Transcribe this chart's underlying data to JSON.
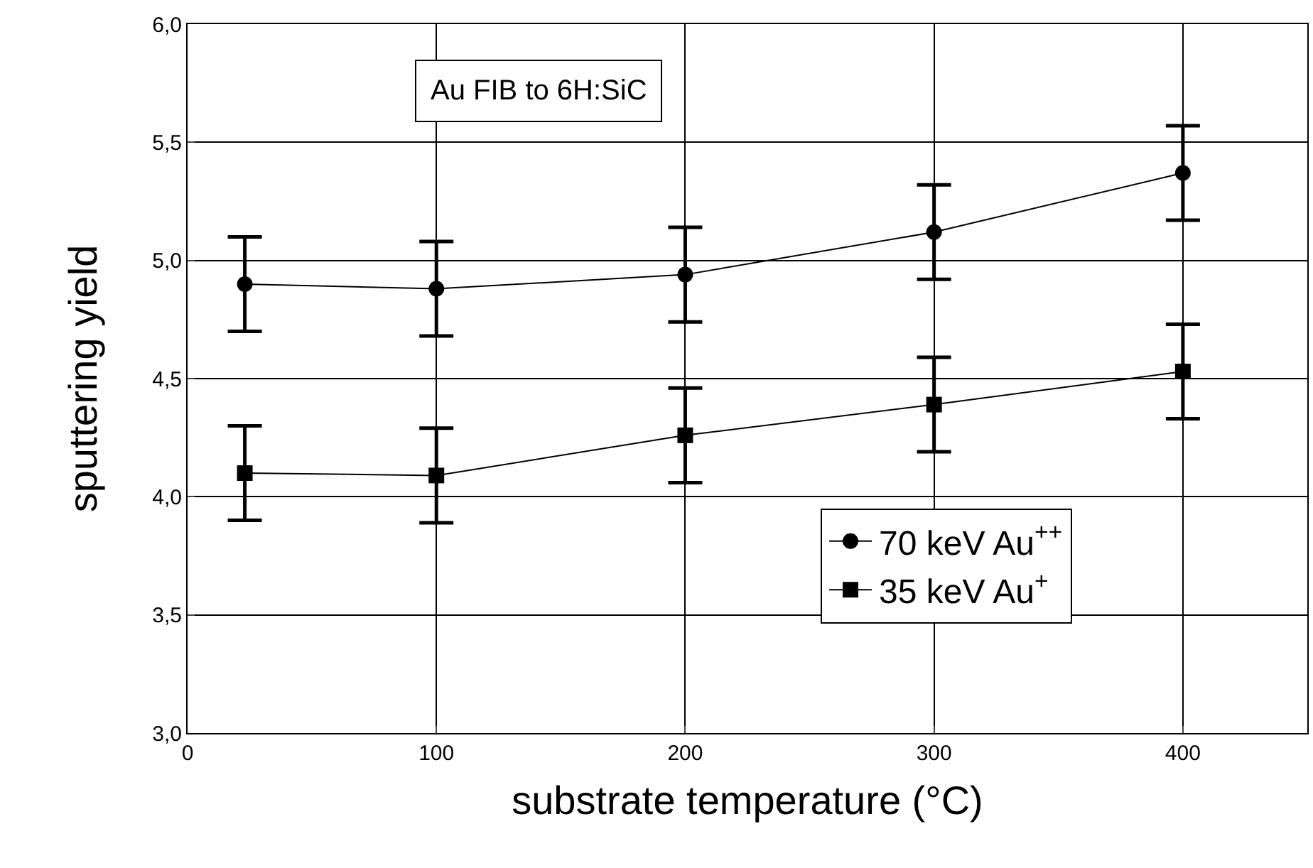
{
  "chart_data": {
    "type": "line",
    "xlabel": "substrate temperature (°C)",
    "ylabel": "sputtering yield",
    "x": [
      23,
      100,
      200,
      300,
      400
    ],
    "series": [
      {
        "name": "70 keV Au$^{++}$",
        "color": "#000000",
        "marker": "circle",
        "values": [
          4.9,
          4.88,
          4.94,
          5.12,
          5.37
        ],
        "errors": [
          0.2,
          0.2,
          0.2,
          0.2,
          0.2
        ]
      },
      {
        "name": "35 keV Au$^{+}$",
        "color": "#000000",
        "marker": "square",
        "values": [
          4.1,
          4.09,
          4.26,
          4.39,
          4.53
        ],
        "errors": [
          0.2,
          0.2,
          0.2,
          0.2,
          0.2
        ]
      }
    ],
    "annotations": [
      "Au FIB to 6H:SiC"
    ],
    "xlim": [
      0,
      450
    ],
    "xticks": [
      0,
      100,
      200,
      300,
      400
    ],
    "ylim": [
      3.0,
      6.0
    ],
    "yticks": [
      {
        "value": 3.0,
        "label": "3,0"
      },
      {
        "value": 3.5,
        "label": "3,5"
      },
      {
        "value": 4.0,
        "label": "4,0"
      },
      {
        "value": 4.5,
        "label": "4,5"
      },
      {
        "value": 5.0,
        "label": "5,0"
      },
      {
        "value": 5.5,
        "label": "5,5"
      },
      {
        "value": 6.0,
        "label": "6,0"
      }
    ],
    "grid": true,
    "legend": "bottom right",
    "line_style": "solid"
  }
}
